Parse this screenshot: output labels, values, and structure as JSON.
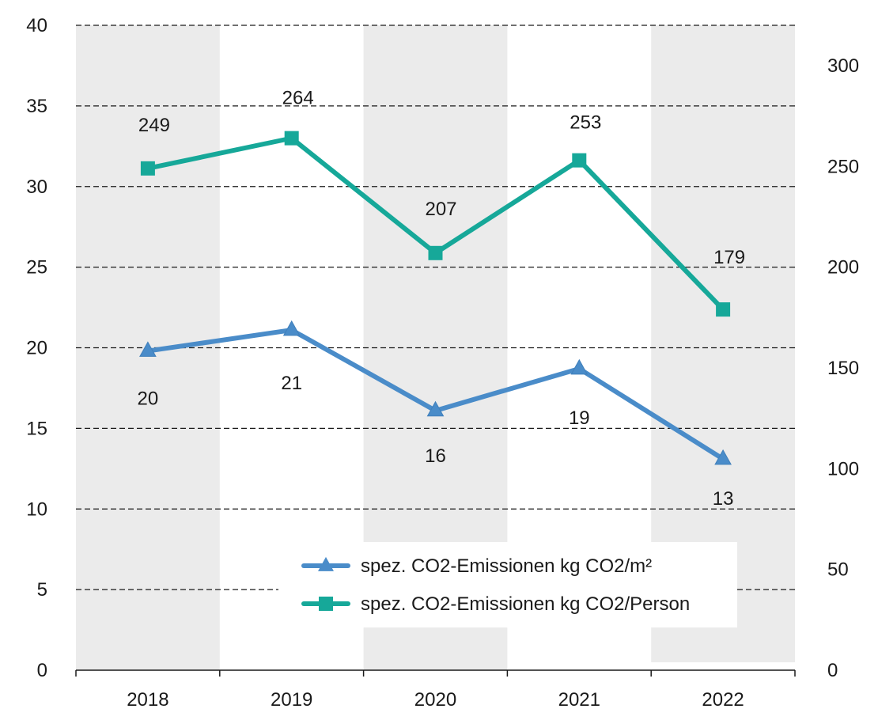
{
  "chart_data": {
    "type": "line",
    "title": "",
    "xlabel": "",
    "ylabel": "",
    "categories": [
      "2018",
      "2019",
      "2020",
      "2021",
      "2022"
    ],
    "y_left": {
      "lim": [
        0,
        40
      ],
      "ticks": [
        "0",
        "5",
        "10",
        "15",
        "20",
        "25",
        "30",
        "35",
        "40"
      ]
    },
    "y_right": {
      "lim": [
        0,
        320
      ],
      "ticks": [
        "0",
        "50",
        "100",
        "150",
        "200",
        "250",
        "300"
      ]
    },
    "grid": "dashed horizontal",
    "background_bands": "alternating grey columns (2018, 2020, 2022)",
    "legend_position": "bottom-right",
    "series": [
      {
        "name": "spez. CO2-Emissionen kg CO2/m²",
        "axis": "left",
        "marker": "triangle",
        "color": "#4a8cc9",
        "values": [
          19.8,
          21.1,
          16.1,
          18.7,
          13.1
        ],
        "labels": [
          "20",
          "21",
          "16",
          "19",
          "13"
        ]
      },
      {
        "name": "spez. CO2-Emissionen kg CO2/Person",
        "axis": "right",
        "marker": "square",
        "color": "#16a899",
        "values": [
          249,
          264,
          207,
          253,
          179
        ],
        "labels": [
          "249",
          "264",
          "207",
          "253",
          "179"
        ]
      }
    ]
  }
}
